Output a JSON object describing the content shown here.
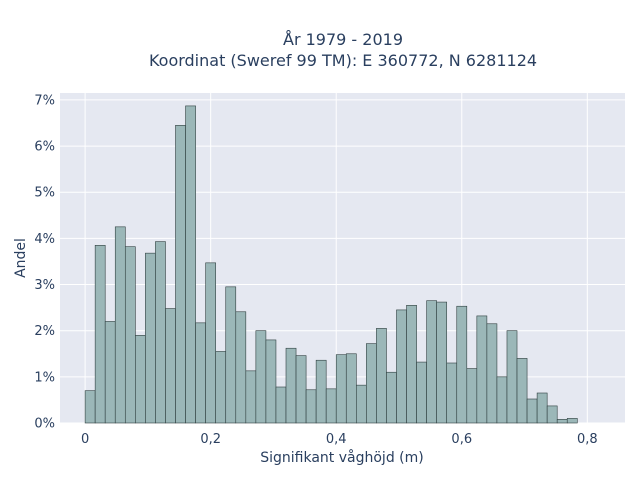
{
  "chart_data": {
    "type": "bar",
    "title_lines": [
      "År 1979 - 2019",
      "Koordinat (Sweref 99 TM): E 360772, N 6281124"
    ],
    "xlabel": "Signifikant våghöjd (m)",
    "ylabel": "Andel",
    "xlim": [
      -0.04,
      0.86
    ],
    "ylim": [
      0,
      7.15
    ],
    "x_ticks": [
      {
        "value": 0,
        "label": "0"
      },
      {
        "value": 0.2,
        "label": "0,2"
      },
      {
        "value": 0.4,
        "label": "0,4"
      },
      {
        "value": 0.6,
        "label": "0,6"
      },
      {
        "value": 0.8,
        "label": "0,8"
      }
    ],
    "y_ticks": [
      {
        "value": 0,
        "label": "0%"
      },
      {
        "value": 1,
        "label": "1%"
      },
      {
        "value": 2,
        "label": "2%"
      },
      {
        "value": 3,
        "label": "3%"
      },
      {
        "value": 4,
        "label": "4%"
      },
      {
        "value": 5,
        "label": "5%"
      },
      {
        "value": 6,
        "label": "6%"
      },
      {
        "value": 7,
        "label": "7%"
      }
    ],
    "grid": true,
    "bin_width": 0.016,
    "bin_start": 0,
    "values": [
      0.7,
      3.85,
      2.2,
      4.25,
      3.82,
      1.9,
      3.68,
      3.93,
      2.48,
      6.45,
      6.87,
      2.17,
      3.47,
      1.55,
      2.95,
      2.41,
      1.13,
      2.0,
      1.8,
      0.78,
      1.62,
      1.46,
      0.72,
      1.36,
      0.74,
      1.48,
      1.5,
      0.82,
      1.72,
      2.05,
      1.1,
      2.45,
      2.55,
      1.32,
      2.65,
      2.62,
      1.3,
      2.53,
      1.18,
      2.32,
      2.15,
      1.0,
      2.0,
      1.4,
      0.52,
      0.65,
      0.37,
      0.08,
      0.1
    ],
    "colors": {
      "bar_fill": "#9bb7b8",
      "bar_stroke": "#2f3f3f",
      "plot_bg": "#e5e8f1",
      "grid": "#ffffff",
      "text": "#2a3f5f"
    }
  }
}
